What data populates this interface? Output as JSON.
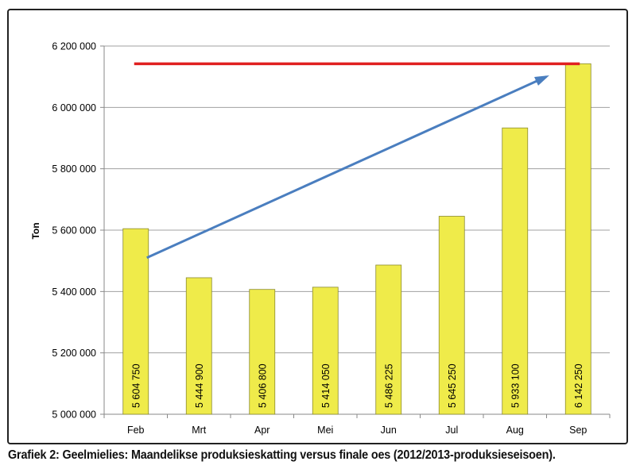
{
  "chart_data": {
    "type": "bar",
    "categories": [
      "Feb",
      "Mrt",
      "Apr",
      "Mei",
      "Jun",
      "Jul",
      "Aug",
      "Sep"
    ],
    "values": [
      5604750,
      5444900,
      5406800,
      5414050,
      5486225,
      5645250,
      5933100,
      6142250
    ],
    "value_labels": [
      "5 604 750",
      "5 444 900",
      "5 406 800",
      "5 414 050",
      "5 486 225",
      "5 645 250",
      "5 933 100",
      "6 142 250"
    ],
    "ylabel": "Ton",
    "ylim": [
      5000000,
      6200000
    ],
    "yticks": [
      5000000,
      5200000,
      5400000,
      5600000,
      5800000,
      6000000,
      6200000
    ],
    "ytick_labels": [
      "5 000 000",
      "5 200 000",
      "5 400 000",
      "5 600 000",
      "5 800 000",
      "6 000 000",
      "6 200 000"
    ],
    "grid": true,
    "colors": {
      "bar_fill": "#efeb4a",
      "bar_stroke": "#8a8a30",
      "reference_line": "#e02020",
      "trend_arrow": "#4a7ebf",
      "grid": "#a0a0a0"
    },
    "reference_line": {
      "value": 6142250,
      "from_category": "Feb",
      "to_category": "Sep"
    },
    "trend_arrow": {
      "from": {
        "category": "Feb",
        "value": 5510000
      },
      "to": {
        "category": "Sep",
        "value": 6100000
      }
    }
  },
  "caption": "Grafiek 2: Geelmielies: Maandelikse produksieskatting versus finale oes (2012/2013-produksieseisoen)."
}
